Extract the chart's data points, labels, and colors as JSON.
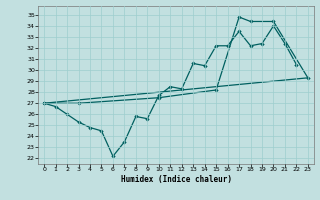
{
  "xlabel": "Humidex (Indice chaleur)",
  "background_color": "#c2e0e0",
  "grid_color": "#9ecece",
  "line_color": "#006060",
  "xlim": [
    -0.5,
    23.5
  ],
  "ylim": [
    21.5,
    35.8
  ],
  "xticks": [
    0,
    1,
    2,
    3,
    4,
    5,
    6,
    7,
    8,
    9,
    10,
    11,
    12,
    13,
    14,
    15,
    16,
    17,
    18,
    19,
    20,
    21,
    22,
    23
  ],
  "yticks": [
    22,
    23,
    24,
    25,
    26,
    27,
    28,
    29,
    30,
    31,
    32,
    33,
    34,
    35
  ],
  "line1_x": [
    0,
    1,
    2,
    3,
    4,
    5,
    6,
    7,
    8,
    9,
    10,
    11,
    12,
    13,
    14,
    15,
    16,
    17,
    18,
    19,
    20,
    21,
    22
  ],
  "line1_y": [
    27.0,
    26.7,
    26.0,
    25.3,
    24.8,
    24.5,
    22.2,
    23.5,
    25.8,
    25.6,
    27.7,
    28.5,
    28.3,
    30.6,
    30.4,
    32.2,
    32.2,
    33.5,
    32.2,
    32.4,
    34.0,
    32.4,
    30.5
  ],
  "line2_x": [
    0,
    3,
    10,
    15,
    17,
    18,
    20,
    23
  ],
  "line2_y": [
    27.0,
    27.0,
    27.5,
    28.2,
    34.8,
    34.4,
    34.4,
    29.3
  ],
  "line3_x": [
    0,
    23
  ],
  "line3_y": [
    27.0,
    29.3
  ]
}
